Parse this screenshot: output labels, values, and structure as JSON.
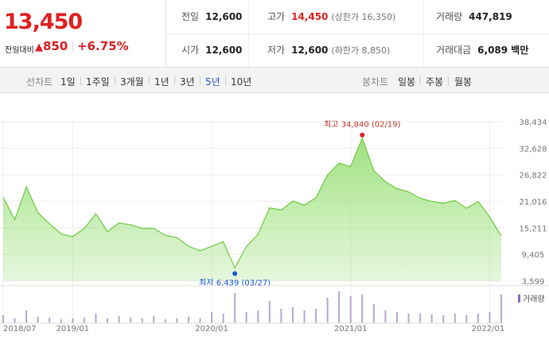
{
  "quote": {
    "price": "13,450",
    "change_label": "전일대비",
    "change_symbol": "▲",
    "change_amount": "850",
    "change_percent": "+6.75%",
    "stats": {
      "prev_close_label": "전일",
      "prev_close": "12,600",
      "high_label": "고가",
      "high": "14,450",
      "upper_limit": "(상한가 16,350)",
      "volume_label": "거래량",
      "volume": "447,819",
      "open_label": "시가",
      "open": "12,600",
      "low_label": "저가",
      "low": "12,600",
      "lower_limit": "(하한가 8,850)",
      "value_label": "거래대금",
      "value": "6,089 백만"
    },
    "colors": {
      "up": "#e02020",
      "down": "#1a5bd8",
      "area": "#9be07a",
      "line": "#6ecb3f"
    }
  },
  "tabs": {
    "line_chart_label": "선차트",
    "periods": [
      "1일",
      "1주일",
      "3개월",
      "1년",
      "3년",
      "5년",
      "10년"
    ],
    "active_period": "5년",
    "candle_chart_label": "봉차트",
    "candles": [
      "일봉",
      "주봉",
      "월봉"
    ]
  },
  "chart_data": {
    "type": "area",
    "title": "",
    "xlabel": "",
    "ylabel": "",
    "ylim": [
      3599,
      38434
    ],
    "y_ticks": [
      "38,434",
      "32,628",
      "26,822",
      "21,016",
      "15,211",
      "9,405",
      "3,599"
    ],
    "x_ticks": [
      "2018/07",
      "2019/01",
      "2020/01",
      "2021/01",
      "2022/01"
    ],
    "grid": true,
    "x": [
      "2018/07",
      "2018/08",
      "2018/09",
      "2018/10",
      "2018/11",
      "2018/12",
      "2019/01",
      "2019/02",
      "2019/03",
      "2019/04",
      "2019/05",
      "2019/06",
      "2019/07",
      "2019/08",
      "2019/09",
      "2019/10",
      "2019/11",
      "2019/12",
      "2020/01",
      "2020/02",
      "2020/03",
      "2020/04",
      "2020/05",
      "2020/06",
      "2020/07",
      "2020/08",
      "2020/09",
      "2020/10",
      "2020/11",
      "2020/12",
      "2021/01",
      "2021/02",
      "2021/03",
      "2021/04",
      "2021/05",
      "2021/06",
      "2021/07",
      "2021/08",
      "2021/09",
      "2021/10",
      "2021/11",
      "2021/12",
      "2022/01",
      "2022/02"
    ],
    "series": [
      {
        "values": [
          21900,
          17000,
          24200,
          18500,
          16100,
          13900,
          13300,
          15100,
          18300,
          14400,
          16300,
          15900,
          15100,
          15100,
          13600,
          13100,
          11200,
          10200,
          11200,
          12200,
          6439,
          11100,
          13800,
          19600,
          19100,
          21100,
          20200,
          21800,
          26800,
          29400,
          28600,
          34840,
          27700,
          25300,
          23800,
          23100,
          21700,
          21000,
          20600,
          21200,
          19500,
          21000,
          17600,
          13450
        ]
      }
    ],
    "high_annotation": "최고 34,840 (02/19)",
    "low_annotation": "최저 6,439 (03/27)",
    "volume_legend": "거래량",
    "volume": [
      0.25,
      0.15,
      0.4,
      0.2,
      0.18,
      0.12,
      0.15,
      0.18,
      0.3,
      0.15,
      0.22,
      0.18,
      0.15,
      0.22,
      0.12,
      0.15,
      0.2,
      0.15,
      0.35,
      0.3,
      0.95,
      0.35,
      0.4,
      0.7,
      0.45,
      0.5,
      0.4,
      0.45,
      0.8,
      1.0,
      0.85,
      0.9,
      0.6,
      0.4,
      0.35,
      0.3,
      0.3,
      0.28,
      0.25,
      0.3,
      0.25,
      0.3,
      0.35,
      0.9
    ]
  }
}
